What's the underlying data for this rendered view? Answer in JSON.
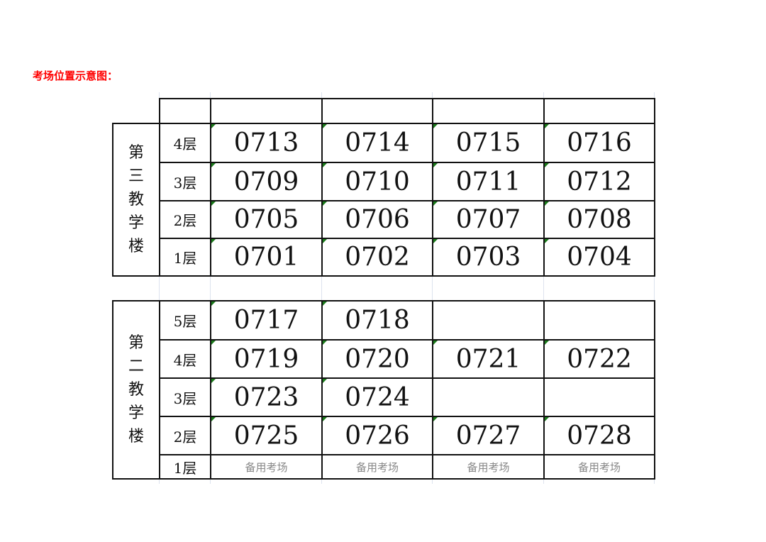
{
  "title": "考场位置示意图：",
  "buildings": [
    {
      "name_chars": [
        "第",
        "三",
        "教",
        "学",
        "楼"
      ],
      "header_row": true,
      "floors": [
        {
          "label": "4层",
          "rooms": [
            "0713",
            "0714",
            "0715",
            "0716"
          ]
        },
        {
          "label": "3层",
          "rooms": [
            "0709",
            "0710",
            "0711",
            "0712"
          ]
        },
        {
          "label": "2层",
          "rooms": [
            "0705",
            "0706",
            "0707",
            "0708"
          ]
        },
        {
          "label": "1层",
          "rooms": [
            "0701",
            "0702",
            "0703",
            "0704"
          ]
        }
      ]
    },
    {
      "name_chars": [
        "第",
        "二",
        "教",
        "学",
        "楼"
      ],
      "header_row": false,
      "floors": [
        {
          "label": "5层",
          "rooms": [
            "0717",
            "0718",
            "",
            ""
          ]
        },
        {
          "label": "4层",
          "rooms": [
            "0719",
            "0720",
            "0721",
            "0722"
          ]
        },
        {
          "label": "3层",
          "rooms": [
            "0723",
            "0724",
            "",
            ""
          ]
        },
        {
          "label": "2层",
          "rooms": [
            "0725",
            "0726",
            "0727",
            "0728"
          ]
        },
        {
          "label": "1层",
          "rooms": [
            "备用考场",
            "备用考场",
            "备用考场",
            "备用考场"
          ],
          "spare": true
        }
      ]
    }
  ],
  "colors": {
    "title": "#ff0000",
    "spare_text": "#888888",
    "comment_marker": "#1a7a1a"
  }
}
